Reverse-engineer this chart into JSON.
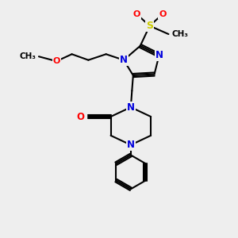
{
  "background_color": "#eeeeee",
  "bond_color": "#000000",
  "atom_colors": {
    "N": "#0000dd",
    "O": "#ff0000",
    "S": "#cccc00",
    "C": "#000000"
  },
  "line_width": 1.5,
  "figsize": [
    3.0,
    3.0
  ],
  "dpi": 100
}
